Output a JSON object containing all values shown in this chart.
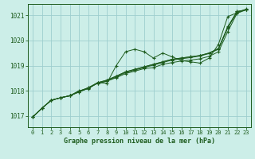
{
  "background_color": "#cceee8",
  "plot_bg_color": "#cceee8",
  "line_color": "#1e5c1e",
  "grid_color": "#9ecece",
  "title": "Graphe pression niveau de la mer (hPa)",
  "ylim": [
    1016.55,
    1021.45
  ],
  "xlim": [
    -0.5,
    23.5
  ],
  "yticks": [
    1017,
    1018,
    1019,
    1020,
    1021
  ],
  "xticks": [
    0,
    1,
    2,
    3,
    4,
    5,
    6,
    7,
    8,
    9,
    10,
    11,
    12,
    13,
    14,
    15,
    16,
    17,
    18,
    19,
    20,
    21,
    22,
    23
  ],
  "series": [
    [
      1016.95,
      1017.3,
      1017.62,
      1017.72,
      1017.8,
      1018.0,
      1018.08,
      1018.32,
      1018.3,
      1019.0,
      1019.55,
      1019.65,
      1019.55,
      1019.3,
      1019.5,
      1019.35,
      1019.2,
      1019.15,
      1019.1,
      1019.3,
      1019.85,
      1020.95,
      1021.1,
      1021.25
    ],
    [
      1016.95,
      1017.3,
      1017.62,
      1017.72,
      1017.8,
      1017.95,
      1018.1,
      1018.3,
      1018.38,
      1018.52,
      1018.68,
      1018.78,
      1018.88,
      1018.92,
      1019.05,
      1019.12,
      1019.18,
      1019.22,
      1019.27,
      1019.37,
      1019.55,
      1020.35,
      1021.08,
      1021.22
    ],
    [
      1016.95,
      1017.3,
      1017.62,
      1017.72,
      1017.8,
      1017.95,
      1018.1,
      1018.3,
      1018.38,
      1018.55,
      1018.72,
      1018.82,
      1018.92,
      1019.02,
      1019.12,
      1019.22,
      1019.27,
      1019.32,
      1019.38,
      1019.48,
      1019.65,
      1020.5,
      1021.12,
      1021.22
    ],
    [
      1016.95,
      1017.3,
      1017.62,
      1017.72,
      1017.8,
      1017.98,
      1018.12,
      1018.32,
      1018.42,
      1018.58,
      1018.75,
      1018.85,
      1018.95,
      1019.05,
      1019.15,
      1019.25,
      1019.3,
      1019.35,
      1019.4,
      1019.5,
      1019.68,
      1020.55,
      1021.15,
      1021.22
    ],
    [
      1016.95,
      1017.3,
      1017.62,
      1017.72,
      1017.8,
      1017.98,
      1018.12,
      1018.32,
      1018.42,
      1018.58,
      1018.75,
      1018.85,
      1018.95,
      1019.05,
      1019.15,
      1019.25,
      1019.3,
      1019.35,
      1019.4,
      1019.5,
      1019.68,
      1020.52,
      1021.15,
      1021.22
    ]
  ]
}
